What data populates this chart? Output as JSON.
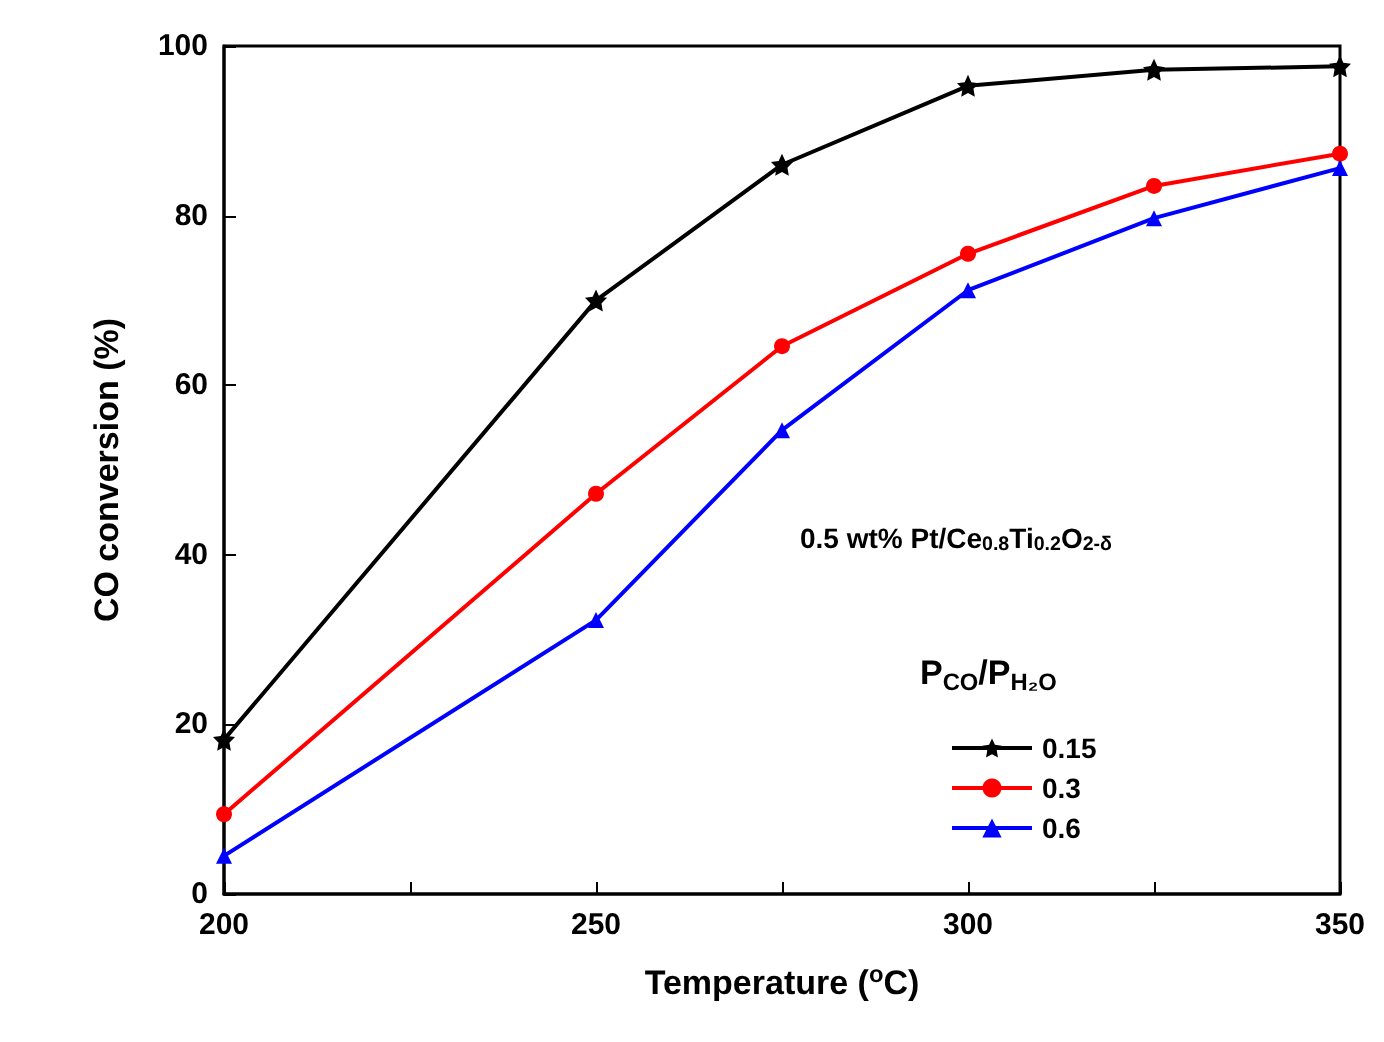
{
  "chart_data": {
    "type": "line",
    "xlabel": "Temperature ($^{o}$C)",
    "ylabel": "CO conversion (%)",
    "legend_title": "P$_{CO}$/P$_{H₂O}$",
    "annotations": [
      "0.5 wt% Pt/Ce$_{0.8}$Ti$_{0.2}$O$_{2-δ}$"
    ],
    "x": [
      200,
      250,
      275,
      300,
      325,
      350
    ],
    "series": [
      {
        "name": "0.15",
        "color": "#000000",
        "marker": "star",
        "values": [
          18.2,
          70,
          86,
          95.3,
          97.2,
          97.6
        ]
      },
      {
        "name": "0.3",
        "color": "#ff0000",
        "marker": "circle",
        "values": [
          9.4,
          47.2,
          64.6,
          75.5,
          83.5,
          87.3
        ]
      },
      {
        "name": "0.6",
        "color": "#0000ff",
        "marker": "triangle",
        "values": [
          4.5,
          32.3,
          54.7,
          71.2,
          79.7,
          85.6
        ]
      }
    ],
    "xlim": [
      200,
      350
    ],
    "xticks": [
      200,
      {
        "value": 225,
        "label": null
      },
      250,
      {
        "value": 275,
        "label": null
      },
      300,
      {
        "value": 325,
        "label": null
      },
      350
    ],
    "ylim": [
      0,
      100
    ],
    "yticks": [
      0,
      20,
      40,
      60,
      80,
      100
    ],
    "grid": false,
    "legend": "bottom right",
    "line_style": "solid"
  }
}
